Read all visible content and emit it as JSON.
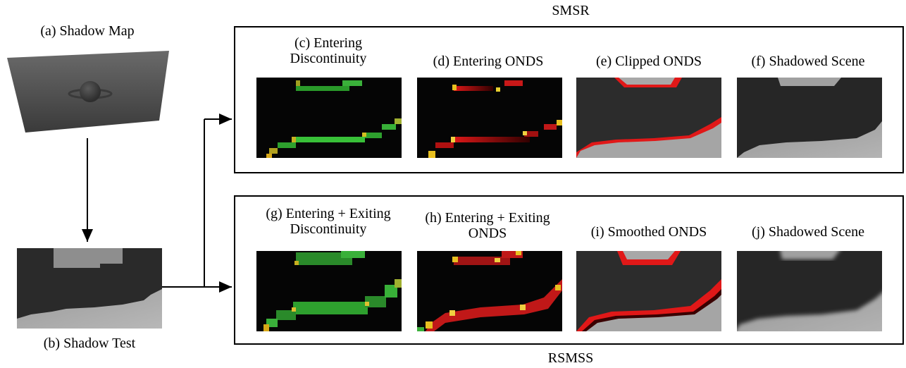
{
  "top_group": {
    "title": "SMSR",
    "panels": [
      {
        "line1": "(c) Entering",
        "line2": "Discontinuity"
      },
      {
        "line1": "(d) Entering ONDS",
        "line2": ""
      },
      {
        "line1": "(e) Clipped ONDS",
        "line2": ""
      },
      {
        "line1": "(f) Shadowed Scene",
        "line2": ""
      }
    ]
  },
  "bottom_group": {
    "title": "RSMSS",
    "panels": [
      {
        "line1": "(g) Entering + Exiting",
        "line2": "Discontinuity"
      },
      {
        "line1": "(h) Entering + Exiting",
        "line2": "ONDS"
      },
      {
        "line1": "(i) Smoothed ONDS",
        "line2": ""
      },
      {
        "line1": "(j) Shadowed Scene",
        "line2": ""
      }
    ]
  },
  "left": {
    "shadow_map_label": "(a) Shadow Map",
    "shadow_test_label": "(b) Shadow Test"
  },
  "colors": {
    "background": "#ffffff",
    "scene_dark": "#262626",
    "scene_light": "#a5a5a5",
    "discontinuity_green": "#38c038",
    "onds_red": "#e01818",
    "overlap_yellow": "#e8d030"
  }
}
